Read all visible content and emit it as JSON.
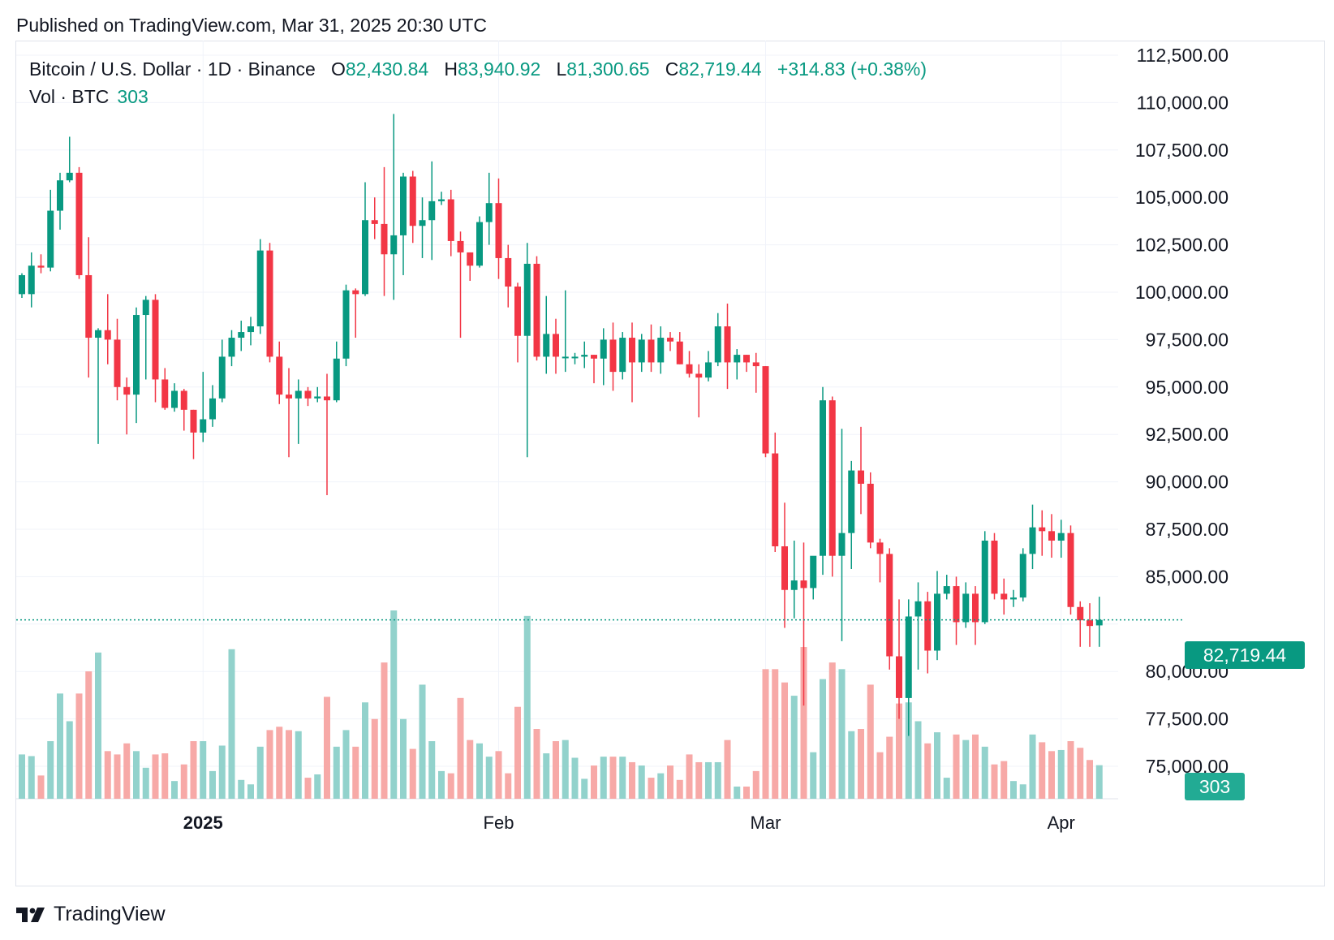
{
  "published": "Published on TradingView.com, Mar 31, 2025 20:30 UTC",
  "legend": {
    "symbol": "Bitcoin / U.S. Dollar · 1D · Binance",
    "o_label": "O",
    "o_value": "82,430.84",
    "h_label": "H",
    "h_value": "83,940.92",
    "l_label": "L",
    "l_value": "81,300.65",
    "c_label": "C",
    "c_value": "82,719.44",
    "change": "+314.83 (+0.38%)",
    "vol_label": "Vol · BTC",
    "vol_value": "303"
  },
  "last_price_badge": "82,719.44",
  "volume_badge": "303",
  "brand": {
    "name": "TradingView",
    "icon": "tradingview-logo-icon"
  },
  "colors": {
    "up": "#089981",
    "down": "#f23645",
    "up_vol": "#92d2cc",
    "down_vol": "#f7a9a7",
    "grid": "#f0f3fa",
    "price_line": "#089981"
  },
  "chart_data": {
    "type": "candlestick",
    "title": "Bitcoin / U.S. Dollar · 1D · Binance",
    "y_axis": {
      "min": 72000,
      "max": 113000,
      "ticks": [
        112500,
        110000,
        107500,
        105000,
        102500,
        100000,
        97500,
        95000,
        92500,
        90000,
        87500,
        85000,
        82500,
        80000,
        77500,
        75000
      ],
      "tick_labels": [
        "112,500.00",
        "110,000.00",
        "107,500.00",
        "105,000.00",
        "102,500.00",
        "100,000.00",
        "97,500.00",
        "95,000.00",
        "92,500.00",
        "90,000.00",
        "87,500.00",
        "85,000.00",
        "",
        "80,000.00",
        "77,500.00",
        "75,000.00"
      ]
    },
    "x_axis": {
      "labels": [
        {
          "text": "2025",
          "index": 19,
          "bold": true
        },
        {
          "text": "Feb",
          "index": 50,
          "bold": false
        },
        {
          "text": "Mar",
          "index": 78,
          "bold": false
        },
        {
          "text": "Apr",
          "index": 109,
          "bold": false
        }
      ]
    },
    "last_price": 82719.44,
    "volume_max": 1700,
    "candles": [
      {
        "o": 99900,
        "h": 101000,
        "l": 99700,
        "c": 100900,
        "v": 400
      },
      {
        "o": 99900,
        "h": 102100,
        "l": 99200,
        "c": 101400,
        "v": 385
      },
      {
        "o": 101400,
        "h": 102000,
        "l": 101000,
        "c": 101300,
        "v": 210
      },
      {
        "o": 101300,
        "h": 105400,
        "l": 101100,
        "c": 104300,
        "v": 520
      },
      {
        "o": 104300,
        "h": 106300,
        "l": 103300,
        "c": 105900,
        "v": 950
      },
      {
        "o": 105900,
        "h": 108200,
        "l": 105800,
        "c": 106300,
        "v": 700
      },
      {
        "o": 106300,
        "h": 106600,
        "l": 100700,
        "c": 100900,
        "v": 950
      },
      {
        "o": 100900,
        "h": 102900,
        "l": 95500,
        "c": 97600,
        "v": 1150
      },
      {
        "o": 97600,
        "h": 98100,
        "l": 92000,
        "c": 98000,
        "v": 1320
      },
      {
        "o": 98000,
        "h": 99900,
        "l": 96200,
        "c": 97500,
        "v": 430
      },
      {
        "o": 97500,
        "h": 98600,
        "l": 94300,
        "c": 95000,
        "v": 400
      },
      {
        "o": 95000,
        "h": 95500,
        "l": 92500,
        "c": 94600,
        "v": 500
      },
      {
        "o": 94600,
        "h": 99200,
        "l": 93100,
        "c": 98800,
        "v": 430
      },
      {
        "o": 98800,
        "h": 99800,
        "l": 95400,
        "c": 99600,
        "v": 280
      },
      {
        "o": 99600,
        "h": 99900,
        "l": 94200,
        "c": 95400,
        "v": 400
      },
      {
        "o": 95400,
        "h": 96000,
        "l": 93800,
        "c": 93900,
        "v": 410
      },
      {
        "o": 93900,
        "h": 95200,
        "l": 93700,
        "c": 94800,
        "v": 160
      },
      {
        "o": 94800,
        "h": 94900,
        "l": 92700,
        "c": 93800,
        "v": 310
      },
      {
        "o": 93800,
        "h": 93800,
        "l": 91200,
        "c": 92600,
        "v": 520
      },
      {
        "o": 92600,
        "h": 95800,
        "l": 92100,
        "c": 93300,
        "v": 520
      },
      {
        "o": 93300,
        "h": 95100,
        "l": 92900,
        "c": 94400,
        "v": 250
      },
      {
        "o": 94400,
        "h": 97500,
        "l": 94200,
        "c": 96600,
        "v": 480
      },
      {
        "o": 96600,
        "h": 98000,
        "l": 96100,
        "c": 97600,
        "v": 1350
      },
      {
        "o": 97600,
        "h": 98500,
        "l": 96900,
        "c": 97900,
        "v": 170
      },
      {
        "o": 97900,
        "h": 98700,
        "l": 97200,
        "c": 98200,
        "v": 130
      },
      {
        "o": 98200,
        "h": 102800,
        "l": 97800,
        "c": 102200,
        "v": 470
      },
      {
        "o": 102200,
        "h": 102600,
        "l": 96300,
        "c": 96600,
        "v": 620
      },
      {
        "o": 96600,
        "h": 97400,
        "l": 94100,
        "c": 94600,
        "v": 650
      },
      {
        "o": 94600,
        "h": 96000,
        "l": 91300,
        "c": 94400,
        "v": 620
      },
      {
        "o": 94400,
        "h": 95400,
        "l": 92000,
        "c": 94800,
        "v": 610
      },
      {
        "o": 94800,
        "h": 95000,
        "l": 94000,
        "c": 94400,
        "v": 190
      },
      {
        "o": 94400,
        "h": 95000,
        "l": 94200,
        "c": 94500,
        "v": 220
      },
      {
        "o": 94500,
        "h": 95700,
        "l": 89300,
        "c": 94300,
        "v": 920
      },
      {
        "o": 94300,
        "h": 97400,
        "l": 94200,
        "c": 96500,
        "v": 470
      },
      {
        "o": 96500,
        "h": 100400,
        "l": 96100,
        "c": 100100,
        "v": 620
      },
      {
        "o": 100100,
        "h": 100200,
        "l": 97600,
        "c": 99900,
        "v": 470
      },
      {
        "o": 99900,
        "h": 105800,
        "l": 99800,
        "c": 103800,
        "v": 870
      },
      {
        "o": 103800,
        "h": 105000,
        "l": 102800,
        "c": 103600,
        "v": 720
      },
      {
        "o": 103600,
        "h": 106600,
        "l": 99800,
        "c": 102000,
        "v": 1230
      },
      {
        "o": 102000,
        "h": 109400,
        "l": 99600,
        "c": 103000,
        "v": 1700
      },
      {
        "o": 103000,
        "h": 106300,
        "l": 100900,
        "c": 106100,
        "v": 720
      },
      {
        "o": 106100,
        "h": 106400,
        "l": 102600,
        "c": 103500,
        "v": 450
      },
      {
        "o": 103500,
        "h": 105000,
        "l": 101800,
        "c": 103800,
        "v": 1030
      },
      {
        "o": 103800,
        "h": 106900,
        "l": 101700,
        "c": 104800,
        "v": 520
      },
      {
        "o": 104800,
        "h": 105300,
        "l": 104600,
        "c": 104900,
        "v": 250
      },
      {
        "o": 104900,
        "h": 105400,
        "l": 101900,
        "c": 102700,
        "v": 230
      },
      {
        "o": 102700,
        "h": 103200,
        "l": 97600,
        "c": 102100,
        "v": 910
      },
      {
        "o": 102100,
        "h": 102100,
        "l": 100600,
        "c": 101400,
        "v": 530
      },
      {
        "o": 101400,
        "h": 104000,
        "l": 101300,
        "c": 103700,
        "v": 500
      },
      {
        "o": 103700,
        "h": 106300,
        "l": 102500,
        "c": 104700,
        "v": 380
      },
      {
        "o": 104700,
        "h": 106000,
        "l": 100700,
        "c": 101800,
        "v": 430
      },
      {
        "o": 101800,
        "h": 102500,
        "l": 99200,
        "c": 100300,
        "v": 230
      },
      {
        "o": 100300,
        "h": 100500,
        "l": 96300,
        "c": 97700,
        "v": 830
      },
      {
        "o": 97700,
        "h": 102600,
        "l": 91300,
        "c": 101500,
        "v": 1650
      },
      {
        "o": 101500,
        "h": 101900,
        "l": 96400,
        "c": 96600,
        "v": 630
      },
      {
        "o": 96600,
        "h": 99800,
        "l": 95700,
        "c": 97800,
        "v": 410
      },
      {
        "o": 97800,
        "h": 98600,
        "l": 95700,
        "c": 96600,
        "v": 520
      },
      {
        "o": 96600,
        "h": 100100,
        "l": 95800,
        "c": 96600,
        "v": 530
      },
      {
        "o": 96600,
        "h": 96800,
        "l": 96200,
        "c": 96600,
        "v": 370
      },
      {
        "o": 96600,
        "h": 97400,
        "l": 96000,
        "c": 96700,
        "v": 180
      },
      {
        "o": 96700,
        "h": 96700,
        "l": 95200,
        "c": 96500,
        "v": 300
      },
      {
        "o": 96500,
        "h": 98100,
        "l": 95100,
        "c": 97500,
        "v": 380
      },
      {
        "o": 97500,
        "h": 98400,
        "l": 94800,
        "c": 95800,
        "v": 380
      },
      {
        "o": 95800,
        "h": 97900,
        "l": 95400,
        "c": 97600,
        "v": 380
      },
      {
        "o": 97600,
        "h": 98400,
        "l": 94200,
        "c": 96300,
        "v": 330
      },
      {
        "o": 96300,
        "h": 97800,
        "l": 95800,
        "c": 97500,
        "v": 300
      },
      {
        "o": 97500,
        "h": 98300,
        "l": 95800,
        "c": 96300,
        "v": 190
      },
      {
        "o": 96300,
        "h": 98200,
        "l": 95700,
        "c": 97600,
        "v": 230
      },
      {
        "o": 97600,
        "h": 97900,
        "l": 96900,
        "c": 97400,
        "v": 300
      },
      {
        "o": 97400,
        "h": 97900,
        "l": 96200,
        "c": 96200,
        "v": 170
      },
      {
        "o": 96200,
        "h": 96900,
        "l": 95500,
        "c": 95700,
        "v": 400
      },
      {
        "o": 95700,
        "h": 96200,
        "l": 93400,
        "c": 95500,
        "v": 330
      },
      {
        "o": 95500,
        "h": 96900,
        "l": 95300,
        "c": 96300,
        "v": 330
      },
      {
        "o": 96300,
        "h": 98900,
        "l": 96100,
        "c": 98200,
        "v": 330
      },
      {
        "o": 98200,
        "h": 99400,
        "l": 94900,
        "c": 96300,
        "v": 530
      },
      {
        "o": 96300,
        "h": 97000,
        "l": 95400,
        "c": 96700,
        "v": 110
      },
      {
        "o": 96700,
        "h": 96700,
        "l": 95800,
        "c": 96300,
        "v": 110
      },
      {
        "o": 96300,
        "h": 96800,
        "l": 94700,
        "c": 96100,
        "v": 250
      },
      {
        "o": 96100,
        "h": 96100,
        "l": 91300,
        "c": 91500,
        "v": 1170
      },
      {
        "o": 91500,
        "h": 92600,
        "l": 86300,
        "c": 86600,
        "v": 1170
      },
      {
        "o": 86600,
        "h": 88900,
        "l": 82300,
        "c": 84300,
        "v": 1050
      },
      {
        "o": 84300,
        "h": 86900,
        "l": 82800,
        "c": 84800,
        "v": 930
      },
      {
        "o": 84800,
        "h": 86800,
        "l": 78200,
        "c": 84400,
        "v": 1370
      },
      {
        "o": 84400,
        "h": 86000,
        "l": 83800,
        "c": 86100,
        "v": 420
      },
      {
        "o": 86100,
        "h": 95000,
        "l": 85100,
        "c": 94300,
        "v": 1080
      },
      {
        "o": 94300,
        "h": 94500,
        "l": 85000,
        "c": 86100,
        "v": 1230
      },
      {
        "o": 86100,
        "h": 92800,
        "l": 81600,
        "c": 87300,
        "v": 1170
      },
      {
        "o": 87300,
        "h": 91100,
        "l": 85400,
        "c": 90600,
        "v": 610
      },
      {
        "o": 90600,
        "h": 92900,
        "l": 88300,
        "c": 89900,
        "v": 630
      },
      {
        "o": 89900,
        "h": 90500,
        "l": 86500,
        "c": 86800,
        "v": 1030
      },
      {
        "o": 86800,
        "h": 87000,
        "l": 84700,
        "c": 86200,
        "v": 420
      },
      {
        "o": 86200,
        "h": 86500,
        "l": 80100,
        "c": 80800,
        "v": 560
      },
      {
        "o": 80800,
        "h": 83800,
        "l": 77500,
        "c": 78600,
        "v": 860
      },
      {
        "o": 78600,
        "h": 83800,
        "l": 76600,
        "c": 82900,
        "v": 870
      },
      {
        "o": 82900,
        "h": 84700,
        "l": 80100,
        "c": 83700,
        "v": 700
      },
      {
        "o": 83700,
        "h": 84200,
        "l": 79900,
        "c": 81100,
        "v": 500
      },
      {
        "o": 81100,
        "h": 85300,
        "l": 80600,
        "c": 84100,
        "v": 600
      },
      {
        "o": 84100,
        "h": 85100,
        "l": 83800,
        "c": 84500,
        "v": 190
      },
      {
        "o": 84500,
        "h": 85000,
        "l": 81400,
        "c": 82600,
        "v": 580
      },
      {
        "o": 82600,
        "h": 84700,
        "l": 82300,
        "c": 84100,
        "v": 530
      },
      {
        "o": 84100,
        "h": 84500,
        "l": 81400,
        "c": 82600,
        "v": 580
      },
      {
        "o": 82600,
        "h": 87400,
        "l": 82500,
        "c": 86900,
        "v": 470
      },
      {
        "o": 86900,
        "h": 87300,
        "l": 83800,
        "c": 84100,
        "v": 310
      },
      {
        "o": 84100,
        "h": 84900,
        "l": 83000,
        "c": 83800,
        "v": 340
      },
      {
        "o": 83800,
        "h": 84300,
        "l": 83400,
        "c": 83900,
        "v": 160
      },
      {
        "o": 83900,
        "h": 86500,
        "l": 83700,
        "c": 86200,
        "v": 130
      },
      {
        "o": 86200,
        "h": 88800,
        "l": 85400,
        "c": 87600,
        "v": 580
      },
      {
        "o": 87600,
        "h": 88500,
        "l": 86100,
        "c": 87400,
        "v": 510
      },
      {
        "o": 87400,
        "h": 88300,
        "l": 86000,
        "c": 86900,
        "v": 430
      },
      {
        "o": 86900,
        "h": 88000,
        "l": 86000,
        "c": 87300,
        "v": 440
      },
      {
        "o": 87300,
        "h": 87700,
        "l": 83000,
        "c": 83400,
        "v": 520
      },
      {
        "o": 83400,
        "h": 83700,
        "l": 81300,
        "c": 82700,
        "v": 460
      },
      {
        "o": 82700,
        "h": 83600,
        "l": 81300,
        "c": 82400,
        "v": 350
      },
      {
        "o": 82430.84,
        "h": 83940.92,
        "l": 81300.65,
        "c": 82719.44,
        "v": 303
      }
    ]
  }
}
